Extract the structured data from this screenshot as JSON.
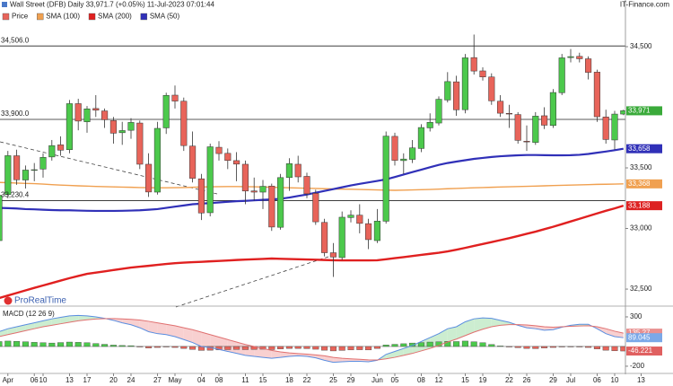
{
  "header": {
    "title": "Wall Street (DFB) Daily 33,971.7 (+0.05%) 11-Jul-2023 07:01:44",
    "brand": "IT-Finance.com",
    "watermark": "ProRealTime"
  },
  "chart_data": [
    {
      "type": "candlestick",
      "categories": [
        null,
        "Apr",
        null,
        null,
        "06",
        "10",
        null,
        null,
        "13",
        null,
        "17",
        null,
        null,
        "20",
        null,
        "24",
        null,
        null,
        "27",
        null,
        "May",
        null,
        null,
        "04",
        null,
        "08",
        null,
        null,
        "11",
        null,
        "15",
        null,
        null,
        "18",
        null,
        "22",
        null,
        null,
        "25",
        null,
        "29",
        null,
        null,
        "Jun",
        null,
        "05",
        null,
        null,
        "08",
        null,
        "12",
        null,
        null,
        "15",
        null,
        "19",
        null,
        null,
        "22",
        null,
        "26",
        null,
        null,
        "29",
        null,
        "Jul",
        null,
        null,
        "06",
        null,
        "10",
        null,
        null,
        "13"
      ],
      "series": [
        {
          "name": "Price",
          "color": "#e8645a",
          "up_color": "#4cc94c",
          "down_color": "#e8645a",
          "open": [
            32900,
            33280,
            33600,
            33400,
            33480,
            33490,
            33590,
            33690,
            33650,
            34030,
            33880,
            33990,
            33970,
            33890,
            33790,
            33810,
            33870,
            33530,
            33300,
            33830,
            34100,
            34050,
            33680,
            33410,
            33130,
            33670,
            33620,
            33560,
            33530,
            33310,
            33300,
            33350,
            33010,
            33420,
            33530,
            33430,
            33290,
            33050,
            32800,
            32760,
            33090,
            33110,
            33040,
            32900,
            33060,
            33760,
            33560,
            33570,
            33660,
            33830,
            33870,
            34060,
            34210,
            33980,
            34410,
            34300,
            34250,
            34050,
            33950,
            33940,
            33720,
            33710,
            33930,
            33850,
            34120,
            34410,
            34420,
            34400,
            34290,
            33920,
            33730,
            33944,
            null,
            null
          ],
          "high": [
            33300,
            33640,
            33650,
            33520,
            33540,
            33620,
            33730,
            33760,
            34060,
            34070,
            34010,
            34100,
            33990,
            33920,
            33880,
            33910,
            33890,
            33620,
            33880,
            34120,
            34180,
            34080,
            33800,
            33450,
            33700,
            33720,
            33660,
            33630,
            33560,
            33420,
            33400,
            33370,
            33450,
            33580,
            33600,
            33460,
            33320,
            33080,
            32880,
            33140,
            33150,
            33200,
            33080,
            33160,
            33800,
            33790,
            33620,
            33730,
            33860,
            33950,
            34090,
            34290,
            34260,
            34440,
            34600,
            34330,
            34280,
            34100,
            34020,
            33960,
            33850,
            33960,
            34000,
            34150,
            34440,
            34480,
            34450,
            34420,
            34310,
            33980,
            33970,
            33980,
            null,
            null
          ],
          "low": [
            32880,
            33250,
            33360,
            33330,
            33390,
            33420,
            33560,
            33600,
            33620,
            33810,
            33790,
            33920,
            33830,
            33700,
            33690,
            33740,
            33490,
            33260,
            33280,
            33780,
            33990,
            33640,
            33380,
            33070,
            33100,
            33560,
            33490,
            33390,
            33200,
            33230,
            33160,
            32980,
            32990,
            33310,
            33380,
            33250,
            33030,
            32770,
            32600,
            32740,
            33050,
            32960,
            32830,
            32880,
            33040,
            33520,
            33450,
            33540,
            33630,
            33800,
            33850,
            34040,
            33930,
            33950,
            34270,
            34220,
            34020,
            33920,
            33830,
            33700,
            33640,
            33690,
            33820,
            33830,
            34100,
            34370,
            34370,
            34230,
            33880,
            33700,
            33650,
            33935,
            null,
            null
          ],
          "close": [
            33274,
            33601,
            33402,
            33482,
            33485,
            33587,
            33684,
            33646,
            34030,
            33886,
            33987,
            33976,
            33897,
            33786,
            33808,
            33875,
            33530,
            33301,
            33826,
            34098,
            34051,
            33684,
            33414,
            33128,
            33674,
            33618,
            33561,
            33531,
            33309,
            33300,
            33348,
            33012,
            33420,
            33535,
            33426,
            33286,
            33055,
            32800,
            32764,
            33093,
            33110,
            33042,
            32908,
            33061,
            33762,
            33562,
            33573,
            33665,
            33833,
            33876,
            34066,
            34212,
            33979,
            34408,
            34299,
            34250,
            34053,
            33951,
            33946,
            33727,
            33714,
            33927,
            33852,
            34122,
            34408,
            34418,
            34400,
            34288,
            33922,
            33734,
            33944,
            33971.7,
            null,
            null
          ]
        },
        {
          "name": "SMA (100)",
          "color": "#f0a050",
          "values": [
            33380,
            33378,
            33375,
            33372,
            33370,
            33366,
            33362,
            33358,
            33355,
            33352,
            33350,
            33347,
            33345,
            33343,
            33341,
            33340,
            33338,
            33337,
            33336,
            33336,
            33337,
            33338,
            33340,
            33342,
            33344,
            33345,
            33346,
            33346,
            33345,
            33344,
            33342,
            33340,
            33338,
            33336,
            33334,
            33332,
            33330,
            33328,
            33326,
            33325,
            33324,
            33322,
            33320,
            33318,
            33316,
            33315,
            33316,
            33318,
            33320,
            33322,
            33325,
            33328,
            33330,
            33333,
            33336,
            33338,
            33340,
            33342,
            33344,
            33346,
            33348,
            33350,
            33352,
            33354,
            33356,
            33358,
            33360,
            33362,
            33364,
            33365,
            33366,
            33368,
            null,
            null
          ]
        },
        {
          "name": "SMA (200)",
          "color": "#e02020",
          "values": [
            32426,
            32447,
            32468,
            32489,
            32510,
            32530,
            32550,
            32570,
            32590,
            32608,
            32626,
            32636,
            32646,
            32657,
            32667,
            32678,
            32685,
            32692,
            32700,
            32707,
            32714,
            32718,
            32722,
            32725,
            32729,
            32732,
            32736,
            32740,
            32743,
            32746,
            32749,
            32752,
            32750,
            32748,
            32746,
            32744,
            32742,
            32740,
            32738,
            32737,
            32737,
            32737,
            32737,
            32738,
            32746,
            32755,
            32764,
            32773,
            32782,
            32791,
            32800,
            32811,
            32825,
            32840,
            32856,
            32872,
            32888,
            32904,
            32920,
            32938,
            32956,
            32974,
            32994,
            33014,
            33036,
            33058,
            33080,
            33102,
            33124,
            33146,
            33166,
            33188,
            null,
            null
          ]
        },
        {
          "name": "SMA (50)",
          "color": "#3030b8",
          "values": [
            33170,
            33168,
            33165,
            33160,
            33158,
            33155,
            33152,
            33150,
            33150,
            33148,
            33146,
            33145,
            33145,
            33145,
            33146,
            33148,
            33150,
            33155,
            33160,
            33170,
            33180,
            33190,
            33200,
            33205,
            33210,
            33215,
            33220,
            33225,
            33228,
            33232,
            33236,
            33240,
            33245,
            33255,
            33268,
            33280,
            33295,
            33310,
            33325,
            33340,
            33355,
            33368,
            33380,
            33392,
            33405,
            33425,
            33445,
            33465,
            33485,
            33505,
            33525,
            33540,
            33552,
            33563,
            33574,
            33582,
            33590,
            33596,
            33600,
            33604,
            33606,
            33606,
            33605,
            33604,
            33604,
            33605,
            33608,
            33615,
            33625,
            33635,
            33646,
            33658,
            null,
            null
          ]
        }
      ],
      "ylim": [
        32367,
        34885
      ],
      "yticks": [
        {
          "value": 34500,
          "label": "34,500"
        },
        {
          "value": 33500,
          "label": "33,500"
        },
        {
          "value": 33000,
          "label": "33,000"
        },
        {
          "value": 32500,
          "label": "32,500"
        }
      ],
      "levels": [
        {
          "value": 34506,
          "label": "34,506.0"
        },
        {
          "value": 33900,
          "label": "33,900.0"
        },
        {
          "value": 33230.4,
          "label": "33,230.4"
        }
      ],
      "value_boxes": [
        {
          "value": 33971,
          "label": "33,971",
          "color": "#3aaa3a"
        },
        {
          "value": 33658,
          "label": "33,658",
          "color": "#3030b8"
        },
        {
          "value": 33368,
          "label": "33,368",
          "color": "#f0a050"
        },
        {
          "value": 33188,
          "label": "33,188",
          "color": "#dd2222"
        }
      ]
    },
    {
      "type": "macd",
      "title": "MACD (12 26 9)",
      "series": [
        {
          "color": "#5a8ee0",
          "values": [
            150,
            180,
            200,
            220,
            240,
            260,
            280,
            295,
            310,
            315,
            310,
            300,
            285,
            265,
            240,
            220,
            190,
            150,
            130,
            120,
            100,
            70,
            40,
            0,
            -10,
            -30,
            -50,
            -70,
            -90,
            -100,
            -110,
            -120,
            -110,
            -100,
            -95,
            -100,
            -115,
            -140,
            -160,
            -155,
            -150,
            -150,
            -155,
            -140,
            -80,
            -50,
            -20,
            10,
            50,
            90,
            130,
            180,
            200,
            250,
            280,
            290,
            285,
            265,
            245,
            215,
            190,
            180,
            165,
            170,
            195,
            215,
            225,
            225,
            180,
            130,
            100,
            89.045,
            null,
            null
          ]
        },
        {
          "color": "#e07070",
          "values": [
            100,
            120,
            140,
            160,
            180,
            200,
            215,
            230,
            245,
            260,
            270,
            278,
            282,
            283,
            280,
            275,
            268,
            255,
            240,
            225,
            210,
            190,
            170,
            145,
            120,
            95,
            70,
            45,
            20,
            0,
            -20,
            -40,
            -55,
            -65,
            -72,
            -78,
            -85,
            -95,
            -110,
            -120,
            -125,
            -130,
            -135,
            -137,
            -125,
            -110,
            -90,
            -70,
            -45,
            -20,
            10,
            45,
            75,
            110,
            145,
            175,
            200,
            215,
            222,
            222,
            218,
            210,
            200,
            195,
            200,
            205,
            208,
            210,
            200,
            180,
            155,
            135.27,
            null,
            null
          ]
        }
      ],
      "histogram": {
        "up_color": "#4cc94c",
        "down_color": "#e8645a",
        "values": [
          50,
          55,
          52,
          48,
          42,
          38,
          35,
          40,
          45,
          42,
          38,
          30,
          22,
          14,
          10,
          8,
          -5,
          -15,
          -10,
          -5,
          -10,
          -20,
          -30,
          -40,
          -38,
          -35,
          -32,
          -30,
          -32,
          -30,
          -28,
          -32,
          -25,
          -20,
          -20,
          -22,
          -28,
          -38,
          -45,
          -40,
          -35,
          -33,
          -35,
          -20,
          15,
          22,
          28,
          35,
          40,
          45,
          48,
          52,
          50,
          55,
          48,
          38,
          20,
          5,
          -5,
          -12,
          -20,
          -22,
          -15,
          -10,
          -5,
          -2,
          -5,
          -10,
          -25,
          -38,
          -44,
          -46.221,
          null,
          null
        ]
      },
      "fill_colors": {
        "above": "#bfe8c4",
        "below": "#f6c4c4"
      },
      "ylim": [
        -264,
        400
      ],
      "yticks": [
        300,
        -200
      ],
      "value_boxes": [
        {
          "value": 135.27,
          "label": "135.27",
          "color": "#e89090"
        },
        {
          "value": 89.045,
          "label": "89.045",
          "color": "#7aa8e8"
        },
        {
          "value": -46.221,
          "label": "-46.221",
          "color": "#e06060"
        }
      ]
    }
  ]
}
